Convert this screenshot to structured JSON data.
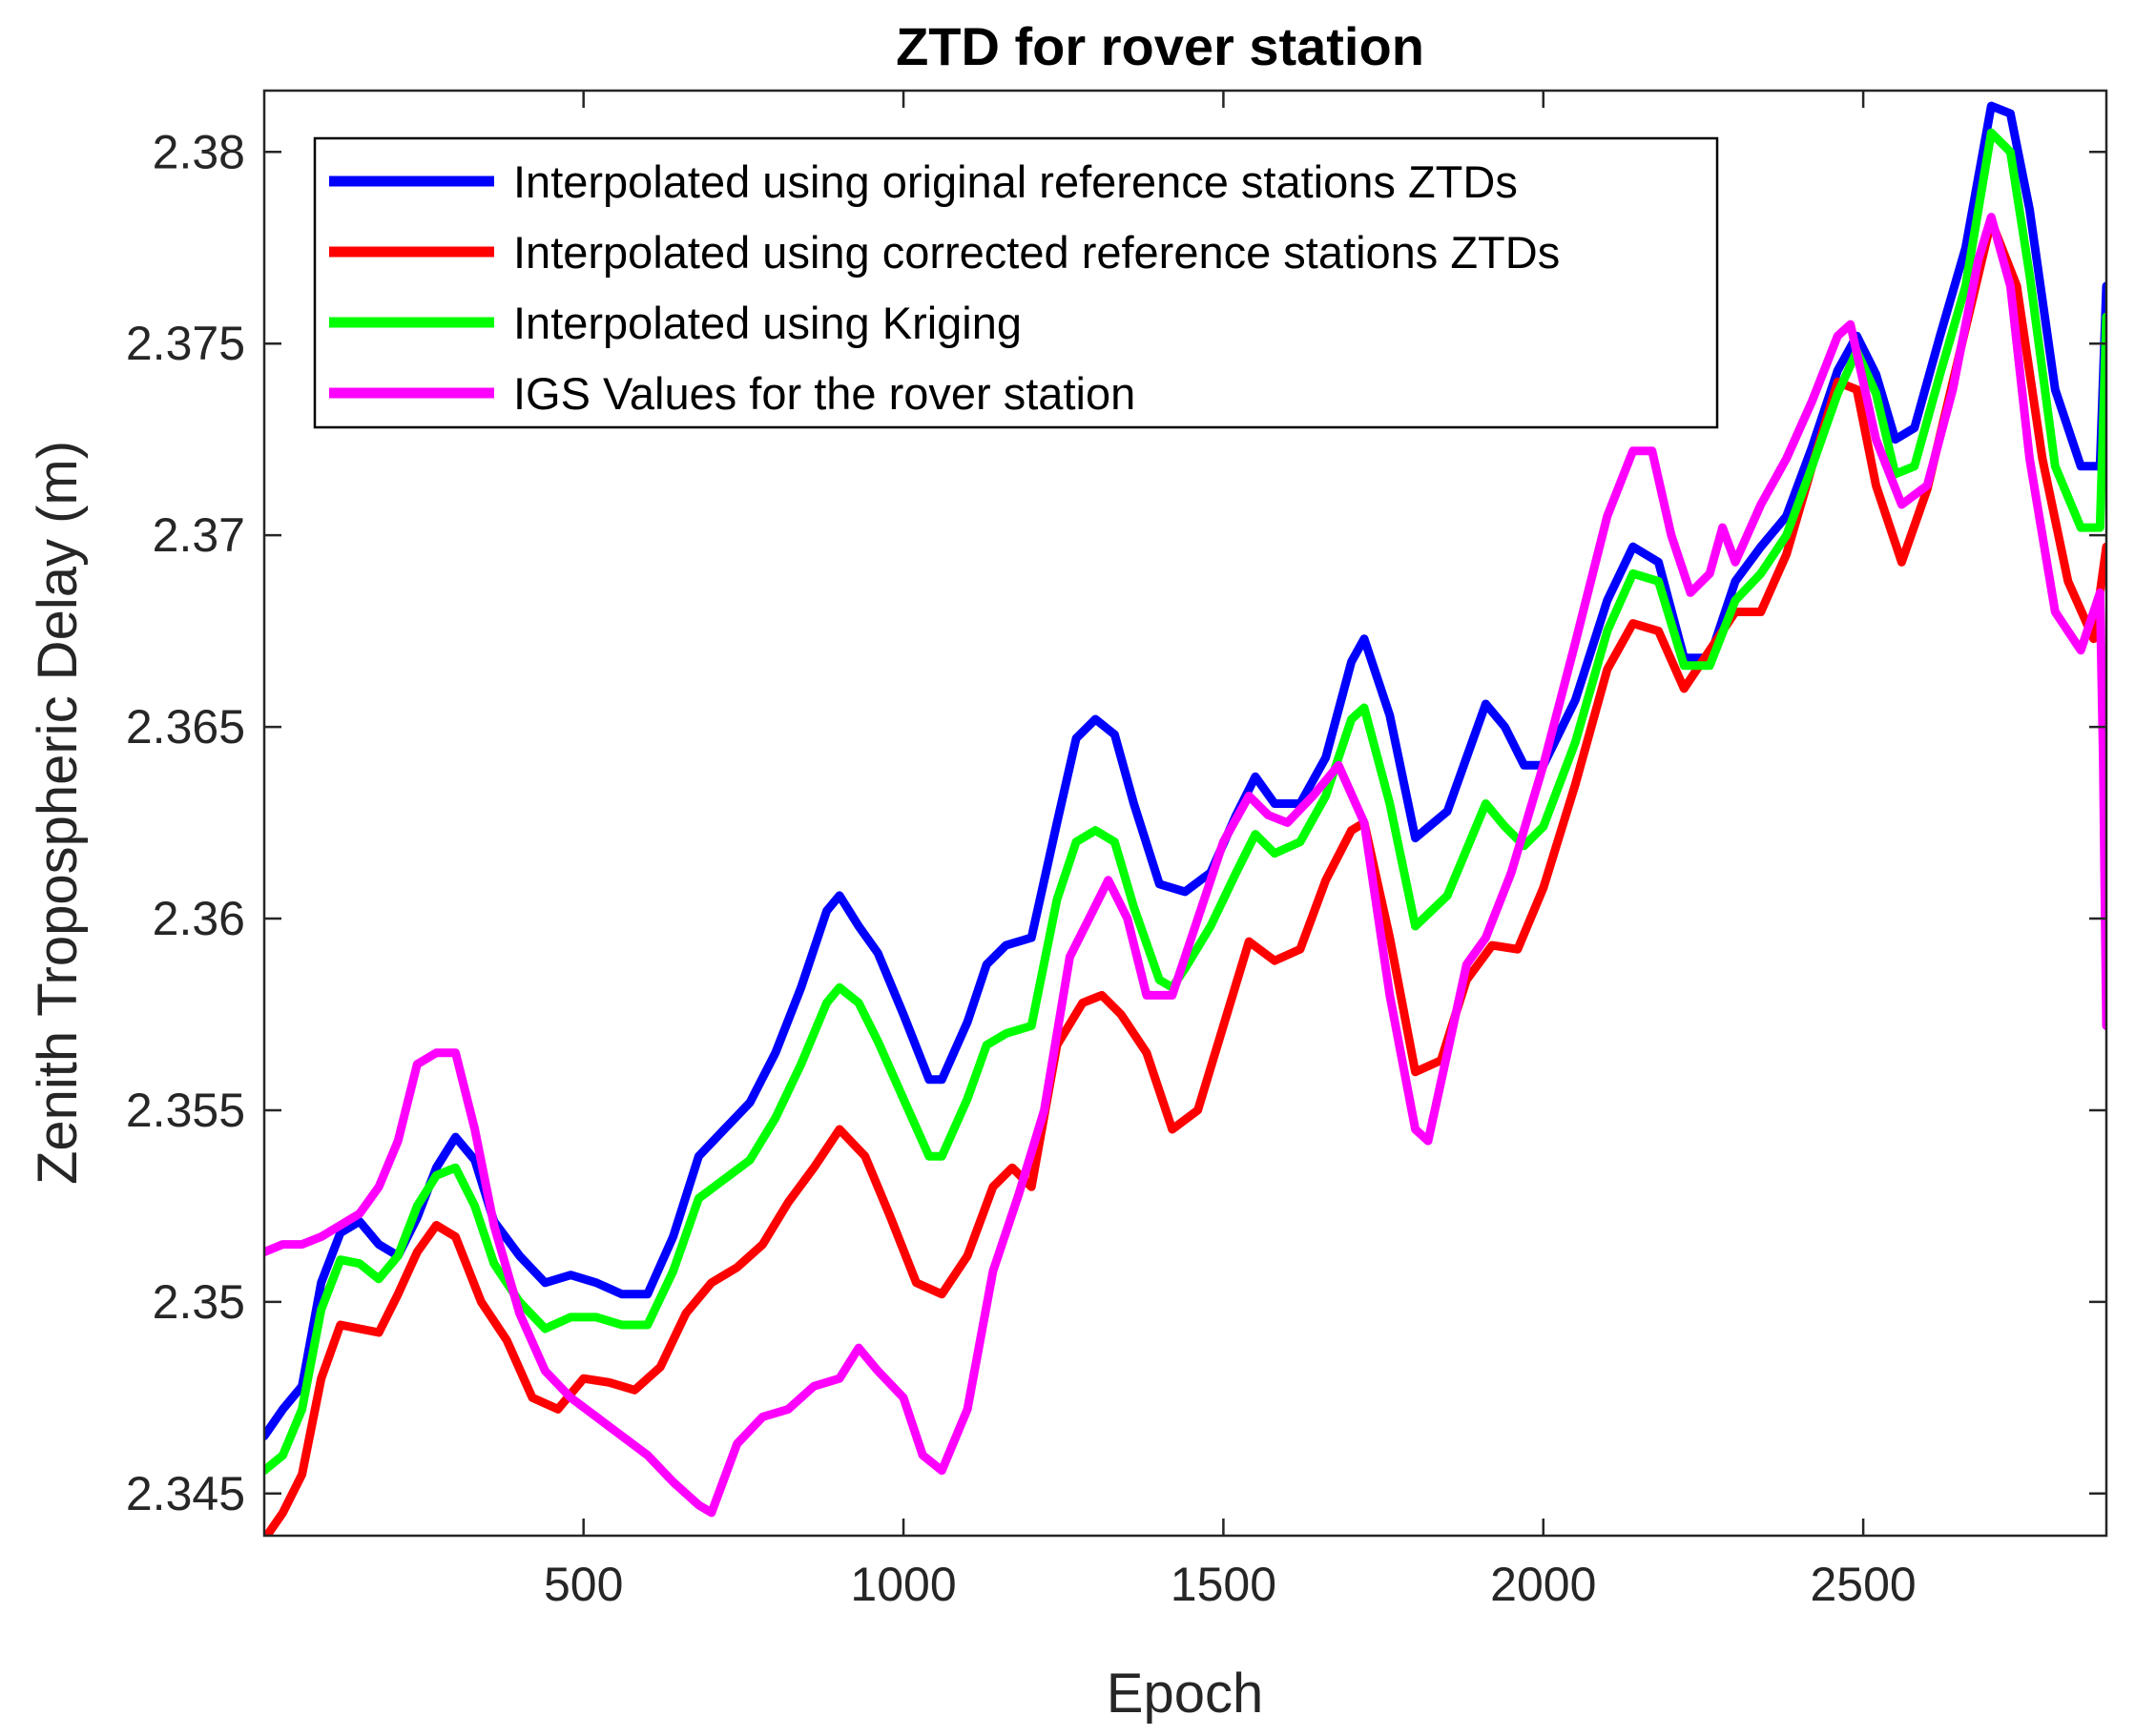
{
  "chart_data": {
    "type": "line",
    "title": "ZTD for rover station",
    "xlabel": "Epoch",
    "ylabel": "Zenith Tropospheric Delay (m)",
    "xlim": [
      1,
      2880
    ],
    "ylim": [
      2.3439,
      2.3816
    ],
    "xticks": [
      500,
      1000,
      1500,
      2000,
      2500
    ],
    "xtick_labels": [
      "500",
      "1000",
      "1500",
      "2000",
      "2500"
    ],
    "yticks": [
      2.345,
      2.35,
      2.355,
      2.36,
      2.365,
      2.37,
      2.375,
      2.38
    ],
    "ytick_labels": [
      "2.345",
      "2.35",
      "2.355",
      "2.36",
      "2.365",
      "2.37",
      "2.375",
      "2.38"
    ],
    "grid": false,
    "legend_position": "top-left",
    "series": [
      {
        "name": "Interpolated using original reference stations ZTDs",
        "color": "#0000ff",
        "x": [
          1,
          30,
          60,
          90,
          120,
          150,
          180,
          210,
          240,
          270,
          300,
          330,
          360,
          400,
          440,
          480,
          520,
          560,
          600,
          640,
          680,
          720,
          760,
          800,
          840,
          880,
          900,
          930,
          960,
          1000,
          1040,
          1060,
          1100,
          1130,
          1160,
          1200,
          1240,
          1270,
          1300,
          1330,
          1360,
          1400,
          1440,
          1480,
          1520,
          1550,
          1580,
          1620,
          1660,
          1700,
          1720,
          1760,
          1800,
          1850,
          1880,
          1910,
          1940,
          1970,
          2000,
          2050,
          2100,
          2140,
          2180,
          2220,
          2260,
          2300,
          2340,
          2380,
          2420,
          2460,
          2490,
          2520,
          2550,
          2580,
          2620,
          2660,
          2700,
          2730,
          2760,
          2800,
          2840,
          2870,
          2880
        ],
        "values": [
          2.3465,
          2.3472,
          2.3478,
          2.3505,
          2.3518,
          2.3521,
          2.3515,
          2.3512,
          2.3522,
          2.3535,
          2.3543,
          2.3537,
          2.3521,
          2.3512,
          2.3505,
          2.3507,
          2.3505,
          2.3502,
          2.3502,
          2.3517,
          2.3538,
          2.3545,
          2.3552,
          2.3565,
          2.3582,
          2.3602,
          2.3606,
          2.3598,
          2.3591,
          2.3575,
          2.3558,
          2.3558,
          2.3573,
          2.3588,
          2.3593,
          2.3595,
          2.3625,
          2.3647,
          2.3652,
          2.3648,
          2.363,
          2.3609,
          2.3607,
          2.3612,
          2.3627,
          2.3637,
          2.363,
          2.363,
          2.3642,
          2.3667,
          2.3673,
          2.3653,
          2.3621,
          2.3628,
          2.3642,
          2.3656,
          2.365,
          2.364,
          2.364,
          2.3657,
          2.3683,
          2.3697,
          2.3693,
          2.3668,
          2.3668,
          2.3688,
          2.3697,
          2.3705,
          2.3723,
          2.3743,
          2.3752,
          2.3742,
          2.3725,
          2.3728,
          2.3752,
          2.3775,
          2.3812,
          2.381,
          2.3785,
          2.3738,
          2.3718,
          2.3718,
          2.3765
        ]
      },
      {
        "name": "Interpolated using corrected reference stations ZTDs",
        "color": "#ff0000",
        "x": [
          1,
          30,
          60,
          90,
          120,
          150,
          180,
          210,
          240,
          270,
          300,
          340,
          380,
          420,
          460,
          500,
          540,
          580,
          620,
          660,
          700,
          740,
          780,
          820,
          860,
          900,
          940,
          980,
          1020,
          1060,
          1100,
          1140,
          1170,
          1200,
          1240,
          1280,
          1310,
          1340,
          1380,
          1420,
          1460,
          1500,
          1540,
          1580,
          1620,
          1660,
          1700,
          1720,
          1760,
          1800,
          1840,
          1880,
          1920,
          1960,
          2000,
          2050,
          2100,
          2140,
          2180,
          2220,
          2260,
          2300,
          2340,
          2380,
          2420,
          2460,
          2490,
          2520,
          2560,
          2600,
          2640,
          2700,
          2740,
          2780,
          2820,
          2860,
          2880
        ],
        "values": [
          2.3438,
          2.3445,
          2.3455,
          2.348,
          2.3494,
          2.3493,
          2.3492,
          2.3502,
          2.3513,
          2.352,
          2.3517,
          2.35,
          2.349,
          2.3475,
          2.3472,
          2.348,
          2.3479,
          2.3477,
          2.3483,
          2.3497,
          2.3505,
          2.3509,
          2.3515,
          2.3526,
          2.3535,
          2.3545,
          2.3538,
          2.3522,
          2.3505,
          2.3502,
          2.3512,
          2.353,
          2.3535,
          2.353,
          2.3567,
          2.3578,
          2.358,
          2.3575,
          2.3565,
          2.3545,
          2.355,
          2.3572,
          2.3594,
          2.3589,
          2.3592,
          2.361,
          2.3623,
          2.3625,
          2.3595,
          2.356,
          2.3563,
          2.3584,
          2.3593,
          2.3592,
          2.3608,
          2.3635,
          2.3665,
          2.3677,
          2.3675,
          2.366,
          2.367,
          2.368,
          2.368,
          2.3695,
          2.3718,
          2.374,
          2.3738,
          2.3713,
          2.3693,
          2.3712,
          2.374,
          2.3782,
          2.3765,
          2.372,
          2.3688,
          2.3673,
          2.3697
        ]
      },
      {
        "name": "Interpolated using Kriging",
        "color": "#00ff00",
        "x": [
          1,
          30,
          60,
          90,
          120,
          150,
          180,
          210,
          240,
          270,
          300,
          330,
          360,
          400,
          440,
          480,
          520,
          560,
          600,
          640,
          680,
          720,
          760,
          800,
          840,
          880,
          900,
          930,
          960,
          1000,
          1040,
          1060,
          1100,
          1130,
          1160,
          1200,
          1240,
          1270,
          1300,
          1330,
          1360,
          1400,
          1420,
          1440,
          1480,
          1520,
          1550,
          1580,
          1620,
          1660,
          1700,
          1720,
          1760,
          1800,
          1850,
          1880,
          1910,
          1940,
          1970,
          2000,
          2050,
          2100,
          2140,
          2180,
          2220,
          2260,
          2300,
          2340,
          2380,
          2420,
          2460,
          2490,
          2520,
          2550,
          2580,
          2620,
          2660,
          2700,
          2730,
          2760,
          2800,
          2840,
          2870,
          2880
        ],
        "values": [
          2.3456,
          2.346,
          2.3472,
          2.3498,
          2.3511,
          2.351,
          2.3506,
          2.3512,
          2.3525,
          2.3533,
          2.3535,
          2.3525,
          2.351,
          2.35,
          2.3493,
          2.3496,
          2.3496,
          2.3494,
          2.3494,
          2.3508,
          2.3527,
          2.3532,
          2.3537,
          2.3548,
          2.3562,
          2.3578,
          2.3582,
          2.3578,
          2.3568,
          2.3553,
          2.3538,
          2.3538,
          2.3553,
          2.3567,
          2.357,
          2.3572,
          2.3605,
          2.362,
          2.3623,
          2.362,
          2.3603,
          2.3584,
          2.3582,
          2.3587,
          2.3598,
          2.3612,
          2.3622,
          2.3617,
          2.362,
          2.3632,
          2.3652,
          2.3655,
          2.363,
          2.3598,
          2.3606,
          2.3618,
          2.363,
          2.3624,
          2.3619,
          2.3624,
          2.3646,
          2.3675,
          2.369,
          2.3688,
          2.3666,
          2.3666,
          2.3683,
          2.369,
          2.37,
          2.3718,
          2.3737,
          2.3748,
          2.3737,
          2.3716,
          2.3718,
          2.3742,
          2.3765,
          2.3805,
          2.38,
          2.3768,
          2.3718,
          2.3702,
          2.3702,
          2.3757
        ]
      },
      {
        "name": "IGS Values for the rover station",
        "color": "#ff00ff",
        "x": [
          1,
          30,
          60,
          90,
          120,
          150,
          180,
          210,
          240,
          270,
          300,
          330,
          360,
          400,
          440,
          480,
          520,
          560,
          600,
          640,
          680,
          700,
          740,
          780,
          820,
          860,
          900,
          930,
          960,
          1000,
          1030,
          1060,
          1100,
          1140,
          1180,
          1220,
          1260,
          1290,
          1320,
          1350,
          1380,
          1420,
          1460,
          1500,
          1540,
          1570,
          1600,
          1640,
          1680,
          1720,
          1760,
          1800,
          1820,
          1850,
          1880,
          1910,
          1950,
          2000,
          2050,
          2100,
          2140,
          2170,
          2200,
          2230,
          2260,
          2280,
          2300,
          2340,
          2380,
          2420,
          2460,
          2480,
          2520,
          2560,
          2600,
          2640,
          2680,
          2700,
          2730,
          2760,
          2800,
          2840,
          2870,
          2875,
          2880
        ],
        "values": [
          2.3513,
          2.3515,
          2.3515,
          2.3517,
          2.352,
          2.3523,
          2.353,
          2.3542,
          2.3562,
          2.3565,
          2.3565,
          2.3545,
          2.352,
          2.3497,
          2.3482,
          2.3475,
          2.347,
          2.3465,
          2.346,
          2.3453,
          2.3447,
          2.3445,
          2.3463,
          2.347,
          2.3472,
          2.3478,
          2.348,
          2.3488,
          2.3482,
          2.3475,
          2.346,
          2.3456,
          2.3472,
          2.3508,
          2.3528,
          2.355,
          2.359,
          2.36,
          2.361,
          2.36,
          2.358,
          2.358,
          2.36,
          2.362,
          2.3632,
          2.3627,
          2.3625,
          2.3632,
          2.364,
          2.3625,
          2.358,
          2.3545,
          2.3542,
          2.3565,
          2.3588,
          2.3595,
          2.3612,
          2.364,
          2.3672,
          2.3705,
          2.3722,
          2.3722,
          2.37,
          2.3685,
          2.369,
          2.3702,
          2.3693,
          2.3708,
          2.372,
          2.3735,
          2.3752,
          2.3755,
          2.3725,
          2.3708,
          2.3713,
          2.3738,
          2.3772,
          2.3783,
          2.3765,
          2.372,
          2.368,
          2.367,
          2.3685,
          2.3642,
          2.3572
        ]
      }
    ]
  }
}
